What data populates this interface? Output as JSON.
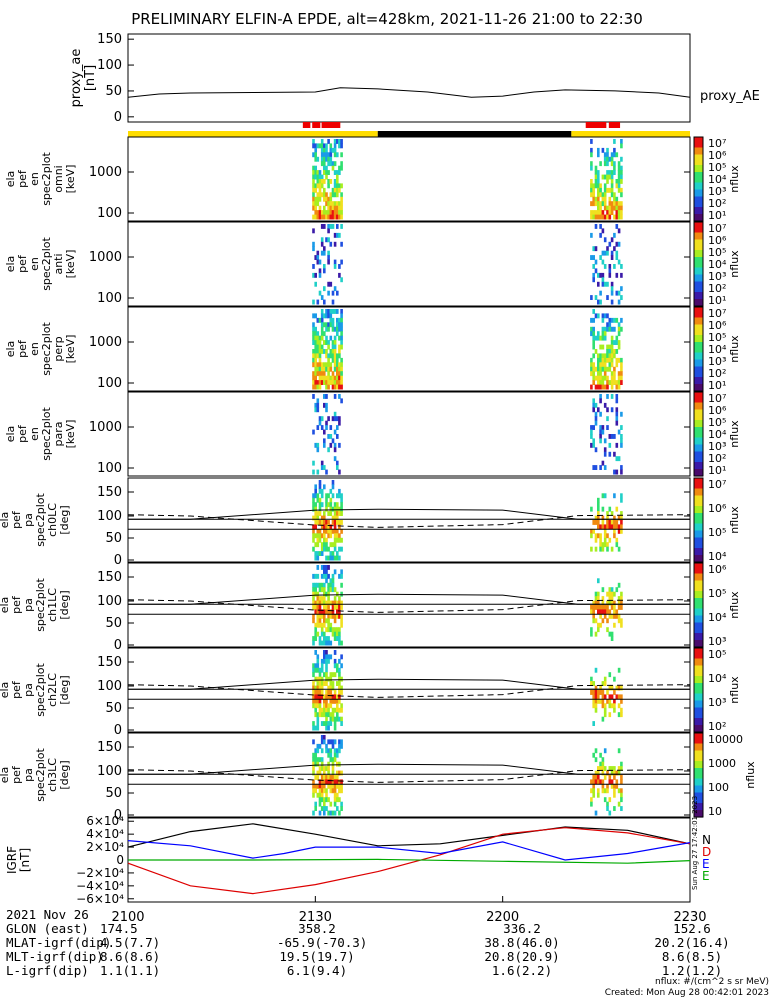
{
  "chart_data": [
    {
      "type": "line",
      "title": "PRELIMINARY ELFIN-A EPDE, alt=428km, 2021-11-26 21:00 to 22:30",
      "ylabel": [
        "proxy_ae",
        "[nT]"
      ],
      "yticks": [
        "150",
        "100",
        "50",
        "0"
      ],
      "ylim": [
        -10,
        160
      ],
      "series": [
        {
          "name": "proxy_AE",
          "x": [
            0,
            5,
            10,
            20,
            30,
            34,
            40,
            48,
            55,
            60,
            65,
            70,
            78,
            85,
            90
          ],
          "values": [
            38,
            44,
            46,
            47,
            48,
            56,
            54,
            48,
            38,
            40,
            48,
            52,
            50,
            46,
            38
          ]
        }
      ]
    },
    {
      "type": "heatmap",
      "panels": [
        {
          "ylabel": [
            "ela",
            "pef",
            "en",
            "spec2plot",
            "omni",
            "[keV]"
          ],
          "yticks": [
            "1000",
            "100"
          ],
          "cbar_labels": [
            "10⁷",
            "10⁶",
            "10⁵",
            "10⁴",
            "10³",
            "10²",
            "10¹"
          ],
          "cbar_title": "nflux"
        },
        {
          "ylabel": [
            "ela",
            "pef",
            "en",
            "spec2plot",
            "anti",
            "[keV]"
          ],
          "yticks": [
            "1000",
            "100"
          ],
          "cbar_labels": [
            "10⁷",
            "10⁶",
            "10⁵",
            "10⁴",
            "10³",
            "10²",
            "10¹"
          ],
          "cbar_title": "nflux"
        },
        {
          "ylabel": [
            "ela",
            "pef",
            "en",
            "spec2plot",
            "perp",
            "[keV]"
          ],
          "yticks": [
            "1000",
            "100"
          ],
          "cbar_labels": [
            "10⁷",
            "10⁶",
            "10⁵",
            "10⁴",
            "10³",
            "10²",
            "10¹"
          ],
          "cbar_title": "nflux"
        },
        {
          "ylabel": [
            "ela",
            "pef",
            "en",
            "spec2plot",
            "para",
            "[keV]"
          ],
          "yticks": [
            "1000",
            "100"
          ],
          "cbar_labels": [
            "10⁷",
            "10⁶",
            "10⁵",
            "10⁴",
            "10³",
            "10²",
            "10¹"
          ],
          "cbar_title": "nflux"
        },
        {
          "ylabel": [
            "ela",
            "pef",
            "pa",
            "spec2plot",
            "ch0LC",
            "[deg]"
          ],
          "yticks": [
            "150",
            "100",
            "50",
            "0"
          ],
          "cbar_labels": [
            "10⁷",
            "10⁶",
            "10⁵",
            "10⁴"
          ],
          "cbar_title": "nflux"
        },
        {
          "ylabel": [
            "ela",
            "pef",
            "pa",
            "spec2plot",
            "ch1LC",
            "[deg]"
          ],
          "yticks": [
            "150",
            "100",
            "50",
            "0"
          ],
          "cbar_labels": [
            "10⁶",
            "10⁵",
            "10⁴",
            "10³"
          ],
          "cbar_title": "nflux"
        },
        {
          "ylabel": [
            "ela",
            "pef",
            "pa",
            "spec2plot",
            "ch2LC",
            "[deg]"
          ],
          "yticks": [
            "150",
            "100",
            "50",
            "0"
          ],
          "cbar_labels": [
            "10⁵",
            "10⁴",
            "10³",
            "10²"
          ],
          "cbar_title": "nflux"
        },
        {
          "ylabel": [
            "ela",
            "pef",
            "pa",
            "spec2plot",
            "ch3LC",
            "[deg]"
          ],
          "yticks": [
            "150",
            "100",
            "50",
            "0"
          ],
          "cbar_labels": [
            "10000",
            "1000",
            "100",
            "10"
          ],
          "cbar_title": "nflux"
        }
      ],
      "loss_cone": {
        "x": [
          0,
          10,
          30,
          40,
          60,
          72,
          90
        ],
        "solid_top": [
          90,
          90,
          110,
          112,
          110,
          90,
          90
        ],
        "solid_bottom": [
          68,
          68,
          68,
          68,
          68,
          68,
          68
        ],
        "dashed": [
          100,
          97,
          77,
          72,
          78,
          98,
          100
        ]
      }
    },
    {
      "type": "line",
      "ylabel": [
        "IGRF",
        "[nT]"
      ],
      "yticks": [
        "6×10⁴",
        "4×10⁴",
        "2×10⁴",
        "0",
        "−2×10⁴",
        "−4×10⁴",
        "−6×10⁴"
      ],
      "ylim": [
        -65000,
        65000
      ],
      "series": [
        {
          "name": "N",
          "color": "#000000",
          "x": [
            0,
            10,
            20,
            30,
            40,
            50,
            60,
            70,
            80,
            90
          ],
          "values": [
            20000,
            44000,
            56000,
            40000,
            22000,
            25000,
            38000,
            51000,
            46000,
            25000
          ]
        },
        {
          "name": "D",
          "color": "#dd0000",
          "x": [
            0,
            10,
            20,
            30,
            40,
            50,
            60,
            70,
            80,
            90
          ],
          "values": [
            -5000,
            -40000,
            -52000,
            -38000,
            -18000,
            8000,
            40000,
            50000,
            42000,
            25000
          ]
        },
        {
          "name": "E",
          "color": "#0000ff",
          "x": [
            0,
            10,
            20,
            25,
            30,
            40,
            50,
            60,
            70,
            80,
            90
          ],
          "values": [
            30000,
            22000,
            3000,
            10000,
            20000,
            20000,
            10000,
            28000,
            0,
            10000,
            27000
          ]
        },
        {
          "name": "E",
          "color": "#00aa00",
          "x": [
            0,
            20,
            40,
            60,
            80,
            90
          ],
          "values": [
            0,
            0,
            1000,
            -2000,
            -5000,
            -1000
          ]
        }
      ]
    }
  ],
  "xaxis": {
    "row0_label": "2021 Nov 26",
    "ticks": [
      "2100",
      "2130",
      "2200",
      "2230"
    ]
  },
  "ephemeris": [
    {
      "label": "GLON (east)",
      "values": [
        "174.5",
        "358.2",
        "336.2",
        "152.6"
      ]
    },
    {
      "label": "MLAT-igrf(dip)",
      "values": [
        "4.5(7.7)",
        "-65.9(-70.3)",
        "38.8(46.0)",
        "20.2(16.4)"
      ]
    },
    {
      "label": "MLT-igrf(dip)",
      "values": [
        "8.6(8.6)",
        "19.5(19.7)",
        "20.8(20.9)",
        "8.6(8.5)"
      ]
    },
    {
      "label": "L-igrf(dip)",
      "values": [
        "1.1(1.1)",
        "6.1(9.4)",
        "1.6(2.2)",
        "1.2(1.2)"
      ]
    }
  ],
  "footer": {
    "units": "nflux: #/(cm^2 s sr MeV)",
    "created": "Created: Mon Aug 28 00:42:01 2023"
  },
  "timestamp_vertical": "Sun Aug 27 17:42:01 2023",
  "colors": {
    "sunlight": "#ffdd00",
    "shadow": "#000000",
    "science": "#ee0000"
  }
}
